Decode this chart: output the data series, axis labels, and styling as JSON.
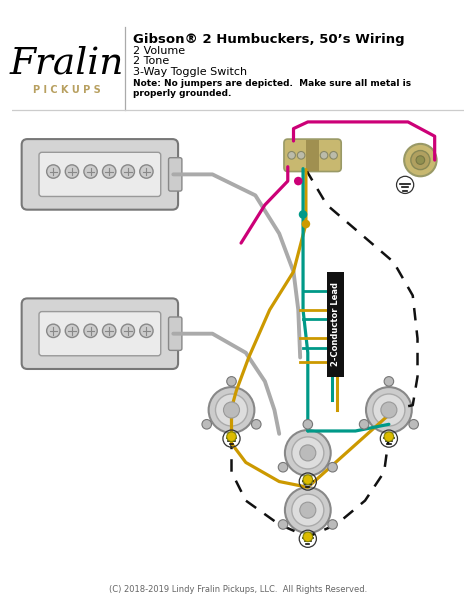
{
  "bg_color": "#ffffff",
  "title": "Gibson® 2 Humbuckers, 50’s Wiring",
  "subtitle_lines": [
    "2 Volume",
    "2 Tone",
    "3-Way Toggle Switch"
  ],
  "note": "Note: No jumpers are depicted.  Make sure all metal is\nproperly grounded.",
  "footer": "(C) 2018-2019 Lindy Fralin Pickups, LLC.  All Rights Reserved.",
  "wire_colors": {
    "hot": "#cc0077",
    "teal": "#009988",
    "yellow": "#cc9900",
    "black": "#111111",
    "gray": "#aaaaaa",
    "dashed": "#111111"
  },
  "fralin_text_color": "#000000",
  "pickups_text_color": "#b8a060",
  "title_fontsize": 9.5,
  "subtitle_fontsize": 8.0,
  "note_fontsize": 6.5,
  "footer_fontsize": 6.0
}
